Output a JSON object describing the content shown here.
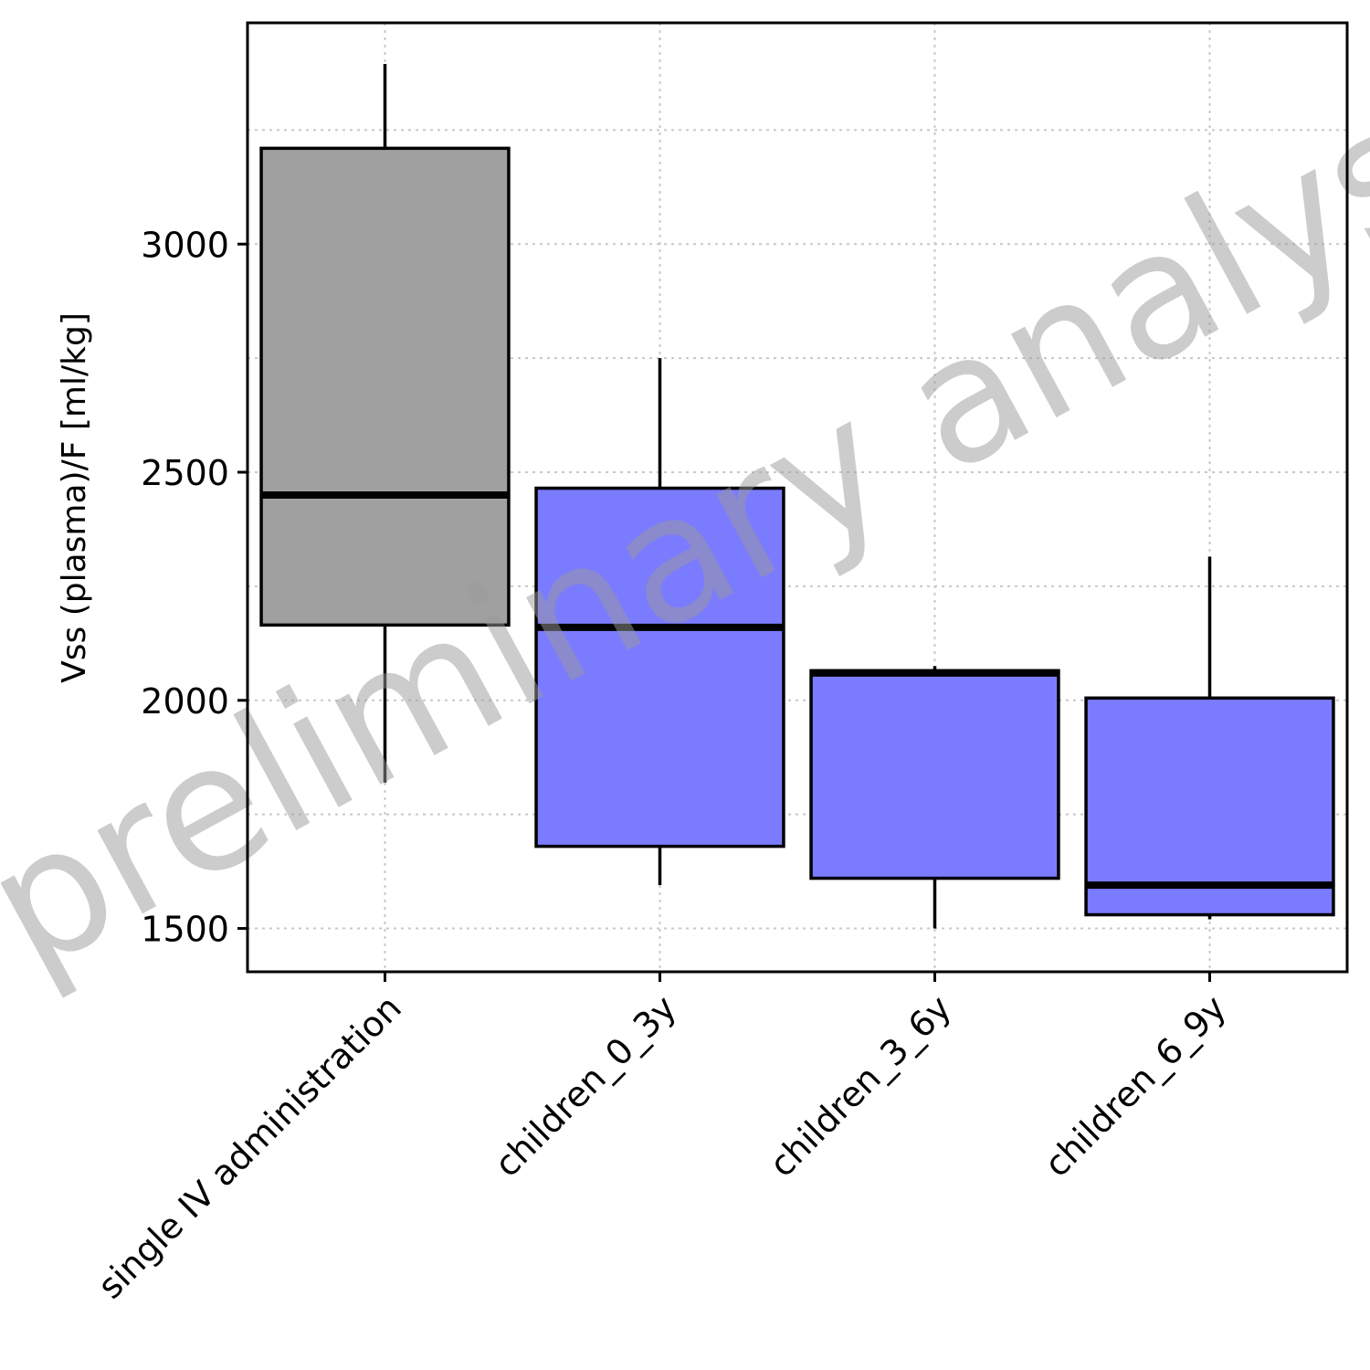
{
  "chart_data": {
    "type": "boxplot",
    "ylabel": "Vss (plasma)/F [ml/kg]",
    "xlabel": "",
    "ylim": [
      1405,
      3485
    ],
    "yticks": [
      1500,
      2000,
      2500,
      3000
    ],
    "grid": true,
    "watermark": "preliminary analysis",
    "categories": [
      "single IV administration",
      "children_0_3y",
      "children_3_6y",
      "children_6_9y"
    ],
    "boxes": [
      {
        "category": "single IV administration",
        "whisker_low": 1820,
        "q1": 2165,
        "median": 2450,
        "q3": 3210,
        "whisker_high": 3395,
        "color": "#a0a0a0"
      },
      {
        "category": "children_0_3y",
        "whisker_low": 1595,
        "q1": 1680,
        "median": 2160,
        "q3": 2465,
        "whisker_high": 2750,
        "color": "#7b7bff"
      },
      {
        "category": "children_3_6y",
        "whisker_low": 1500,
        "q1": 1610,
        "median": 2060,
        "q3": 2065,
        "whisker_high": 2075,
        "color": "#7b7bff"
      },
      {
        "category": "children_6_9y",
        "whisker_low": 1520,
        "q1": 1530,
        "median": 1595,
        "q3": 2005,
        "whisker_high": 2315,
        "color": "#7b7bff"
      }
    ]
  }
}
